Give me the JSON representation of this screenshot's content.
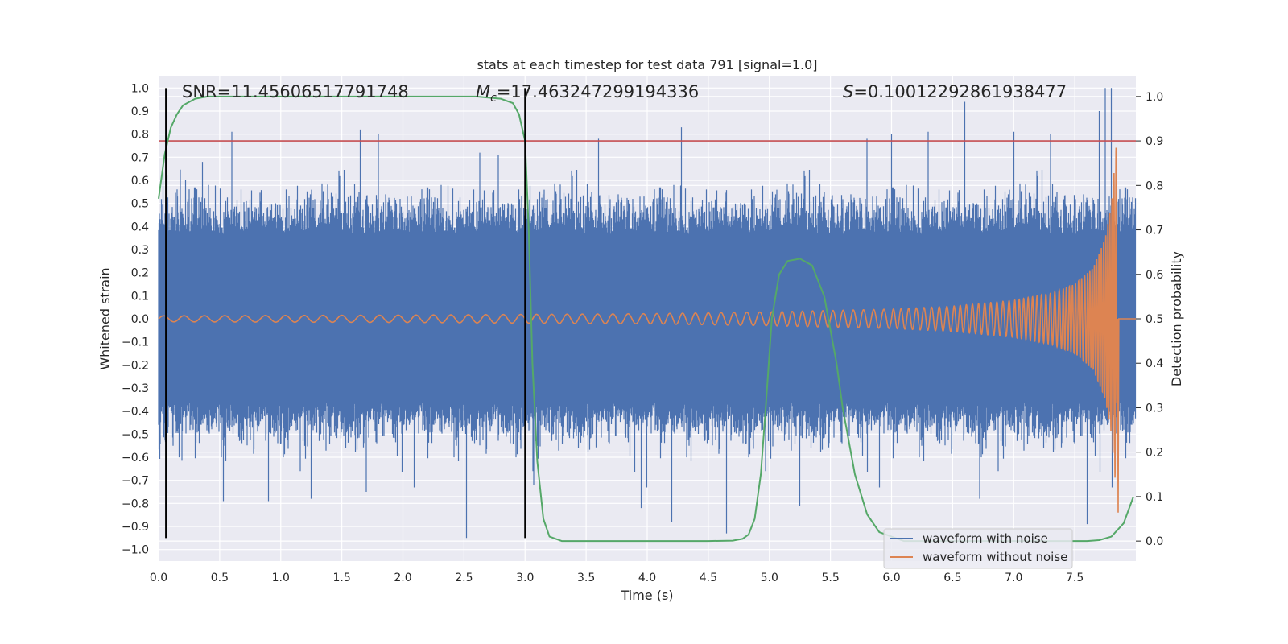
{
  "chart_data": {
    "type": "line",
    "title": "stats at each timestep for test data 791 [signal=1.0]",
    "xlabel": "Time (s)",
    "ylabel": "Whitened strain",
    "y2label": "Detection probability",
    "xlim": [
      0.0,
      8.0
    ],
    "ylim": [
      -1.05,
      1.05
    ],
    "y2lim": [
      -0.045,
      1.045
    ],
    "xticks": [
      "0.0",
      "0.5",
      "1.0",
      "1.5",
      "2.0",
      "2.5",
      "3.0",
      "3.5",
      "4.0",
      "4.5",
      "5.0",
      "5.5",
      "6.0",
      "6.5",
      "7.0",
      "7.5"
    ],
    "yticks": [
      "1.0",
      "0.9",
      "0.8",
      "0.7",
      "0.6",
      "0.5",
      "0.4",
      "0.3",
      "0.2",
      "0.1",
      "0.0",
      "-0.1",
      "-0.2",
      "-0.3",
      "-0.4",
      "-0.5",
      "-0.6",
      "-0.7",
      "-0.8",
      "-0.9",
      "-1.0"
    ],
    "y2ticks": [
      "0.0",
      "0.1",
      "0.2",
      "0.3",
      "0.4",
      "0.5",
      "0.6",
      "0.7",
      "0.8",
      "0.9",
      "1.0"
    ],
    "grid": true,
    "legend_position": "lower-right",
    "annotations": {
      "snr": "SNR=11.45606517791748",
      "mc_symbol": "M",
      "mc_sub": "c",
      "mc_value": "=17.463247299194336",
      "s_symbol": "S",
      "s_value": "=0.10012292861938477"
    },
    "threshold": {
      "axis": "y2",
      "value": 0.9,
      "color": "#c44e52"
    },
    "vlines": [
      0.06,
      3.0
    ],
    "vline_range": [
      -0.95,
      1.0
    ],
    "series": [
      {
        "name": "waveform with noise",
        "color": "#4c72b0",
        "kind": "noise",
        "x_range": [
          0.0,
          8.0
        ],
        "envelope": 0.35,
        "peaks": [
          [
            0.07,
            0.62
          ],
          [
            0.12,
            -0.55
          ],
          [
            0.22,
            0.6
          ],
          [
            0.36,
            0.68
          ],
          [
            0.53,
            -0.79
          ],
          [
            0.6,
            0.81
          ],
          [
            0.9,
            -0.79
          ],
          [
            1.25,
            -0.78
          ],
          [
            1.65,
            0.82
          ],
          [
            1.7,
            -0.75
          ],
          [
            1.8,
            0.8
          ],
          [
            2.52,
            -0.95
          ],
          [
            2.63,
            0.72
          ],
          [
            2.78,
            0.71
          ],
          [
            3.07,
            -0.72
          ],
          [
            3.6,
            0.78
          ],
          [
            3.95,
            -0.82
          ],
          [
            4.2,
            -0.88
          ],
          [
            4.28,
            0.83
          ],
          [
            4.65,
            -0.93
          ],
          [
            5.25,
            -0.81
          ],
          [
            5.8,
            0.78
          ],
          [
            6.0,
            0.8
          ],
          [
            6.3,
            0.81
          ],
          [
            6.6,
            0.94
          ],
          [
            6.72,
            -0.78
          ],
          [
            7.0,
            0.81
          ],
          [
            7.3,
            0.8
          ],
          [
            7.6,
            -0.89
          ],
          [
            7.7,
            0.9
          ],
          [
            7.75,
            1.0
          ],
          [
            7.8,
            1.0
          ]
        ]
      },
      {
        "name": "waveform without noise",
        "color": "#dd8452",
        "kind": "chirp",
        "t_start": 0.0,
        "t_end": 7.85,
        "amplitude_points": [
          [
            0.0,
            0.013
          ],
          [
            2.0,
            0.016
          ],
          [
            4.0,
            0.022
          ],
          [
            5.0,
            0.03
          ],
          [
            6.0,
            0.042
          ],
          [
            6.5,
            0.055
          ],
          [
            7.0,
            0.08
          ],
          [
            7.3,
            0.11
          ],
          [
            7.5,
            0.15
          ],
          [
            7.65,
            0.22
          ],
          [
            7.75,
            0.35
          ],
          [
            7.8,
            0.5
          ],
          [
            7.84,
            0.76
          ],
          [
            7.85,
            0.0
          ]
        ],
        "cycles_at_points": [
          [
            0.0,
            0.0
          ],
          [
            1.0,
            6.0
          ],
          [
            2.0,
            12.5
          ],
          [
            3.0,
            19.5
          ],
          [
            4.0,
            27.5
          ],
          [
            5.0,
            37.0
          ],
          [
            6.0,
            49.0
          ],
          [
            6.5,
            57.0
          ],
          [
            7.0,
            67.0
          ],
          [
            7.4,
            78.0
          ],
          [
            7.6,
            86.0
          ],
          [
            7.75,
            94.0
          ],
          [
            7.85,
            100.0
          ]
        ]
      },
      {
        "name": "detection probability",
        "color": "#55a868",
        "axis": "y2",
        "x": [
          0.0,
          0.05,
          0.1,
          0.15,
          0.2,
          0.3,
          0.4,
          0.6,
          1.0,
          2.0,
          2.6,
          2.8,
          2.9,
          2.95,
          3.0,
          3.03,
          3.06,
          3.1,
          3.15,
          3.2,
          3.3,
          3.5,
          4.0,
          4.5,
          4.7,
          4.78,
          4.83,
          4.88,
          4.93,
          4.97,
          5.02,
          5.08,
          5.15,
          5.25,
          5.35,
          5.45,
          5.55,
          5.6,
          5.7,
          5.8,
          5.9,
          6.0,
          6.1,
          6.5,
          7.0,
          7.5,
          7.6,
          7.7,
          7.8,
          7.9,
          7.98
        ],
        "y": [
          0.77,
          0.87,
          0.93,
          0.96,
          0.98,
          0.995,
          1.0,
          1.0,
          1.0,
          1.0,
          1.0,
          0.995,
          0.985,
          0.96,
          0.9,
          0.7,
          0.4,
          0.18,
          0.05,
          0.01,
          0.0,
          0.0,
          0.0,
          0.0,
          0.001,
          0.005,
          0.015,
          0.05,
          0.15,
          0.3,
          0.5,
          0.6,
          0.63,
          0.635,
          0.62,
          0.55,
          0.4,
          0.3,
          0.15,
          0.06,
          0.02,
          0.01,
          0.0,
          0.0,
          0.0,
          0.0,
          0.0,
          0.002,
          0.01,
          0.04,
          0.1
        ]
      }
    ]
  }
}
